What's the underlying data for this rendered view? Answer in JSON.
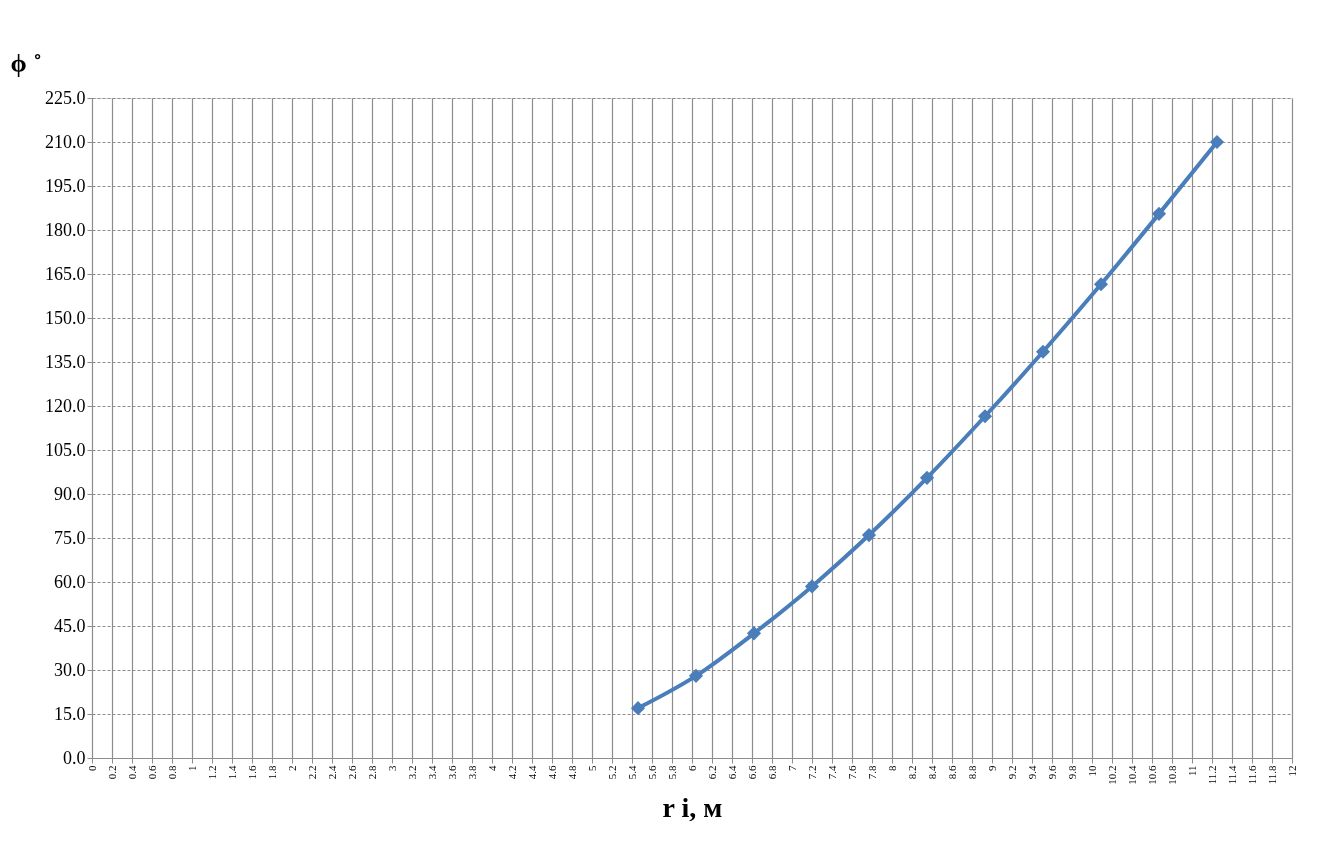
{
  "chart_data": {
    "type": "line",
    "xlabel": "r i, м",
    "ylabel": "ϕ ˚",
    "x": [
      5.46,
      6.04,
      6.62,
      7.2,
      7.77,
      8.35,
      8.93,
      9.51,
      10.09,
      10.67,
      11.25
    ],
    "series": [
      {
        "color": "#4a7ebb",
        "values": [
          17,
          28,
          42.5,
          58.5,
          76,
          95.5,
          116.5,
          138.5,
          161.5,
          185.5,
          210
        ]
      }
    ],
    "xlim": [
      0,
      12
    ],
    "xticks": [
      0,
      0.2,
      0.4,
      0.6,
      0.8,
      1,
      1.2,
      1.4,
      1.6,
      1.8,
      2,
      2.2,
      2.4,
      2.6,
      2.8,
      3,
      3.2,
      3.4,
      3.6,
      3.8,
      4,
      4.2,
      4.4,
      4.6,
      4.8,
      5,
      5.2,
      5.4,
      5.6,
      5.8,
      6,
      6.2,
      6.4,
      6.6,
      6.8,
      7,
      7.2,
      7.4,
      7.6,
      7.8,
      8,
      8.2,
      8.4,
      8.6,
      8.8,
      9,
      9.2,
      9.4,
      9.6,
      9.8,
      10,
      10.2,
      10.4,
      10.6,
      10.8,
      11,
      11.2,
      11.4,
      11.6,
      11.8,
      12
    ],
    "ylim": [
      0,
      225
    ],
    "yticks": [
      {
        "value": 0,
        "label": "0.0"
      },
      {
        "value": 15,
        "label": "15.0"
      },
      {
        "value": 30,
        "label": "30.0"
      },
      {
        "value": 45,
        "label": "45.0"
      },
      {
        "value": 60,
        "label": "60.0"
      },
      {
        "value": 75,
        "label": "75.0"
      },
      {
        "value": 90,
        "label": "90.0"
      },
      {
        "value": 105,
        "label": "105.0"
      },
      {
        "value": 120,
        "label": "120.0"
      },
      {
        "value": 135,
        "label": "135.0"
      },
      {
        "value": 150,
        "label": "150.0"
      },
      {
        "value": 165,
        "label": "165.0"
      },
      {
        "value": 180,
        "label": "180.0"
      },
      {
        "value": 195,
        "label": "195.0"
      },
      {
        "value": 210,
        "label": "210.0"
      },
      {
        "value": 225,
        "label": "225.0"
      }
    ],
    "grid": true,
    "marker": "diamond",
    "line_style": "solid"
  }
}
